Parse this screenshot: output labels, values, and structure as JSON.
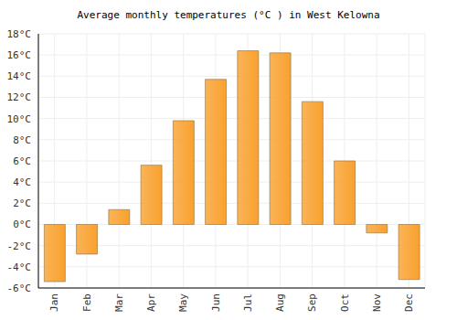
{
  "chart_data": {
    "type": "bar",
    "title": "Average monthly temperatures (°C ) in West Kelowna",
    "categories": [
      "Jan",
      "Feb",
      "Mar",
      "Apr",
      "May",
      "Jun",
      "Jul",
      "Aug",
      "Sep",
      "Oct",
      "Nov",
      "Dec"
    ],
    "values": [
      -5.4,
      -2.8,
      1.4,
      5.6,
      9.8,
      13.7,
      16.4,
      16.2,
      11.6,
      6.0,
      -0.8,
      -5.2
    ],
    "color": "#f9a12e",
    "ylim": [
      -6,
      18
    ],
    "yticks": [
      {
        "value": -6,
        "label": "-6°C"
      },
      {
        "value": -4,
        "label": "-4°C"
      },
      {
        "value": -2,
        "label": "-2°C"
      },
      {
        "value": 0,
        "label": "0°C"
      },
      {
        "value": 2,
        "label": "2°C"
      },
      {
        "value": 4,
        "label": "4°C"
      },
      {
        "value": 6,
        "label": "6°C"
      },
      {
        "value": 8,
        "label": "8°C"
      },
      {
        "value": 10,
        "label": "10°C"
      },
      {
        "value": 12,
        "label": "12°C"
      },
      {
        "value": 14,
        "label": "14°C"
      },
      {
        "value": 16,
        "label": "16°C"
      },
      {
        "value": 18,
        "label": "18°C"
      }
    ],
    "grid": true
  }
}
